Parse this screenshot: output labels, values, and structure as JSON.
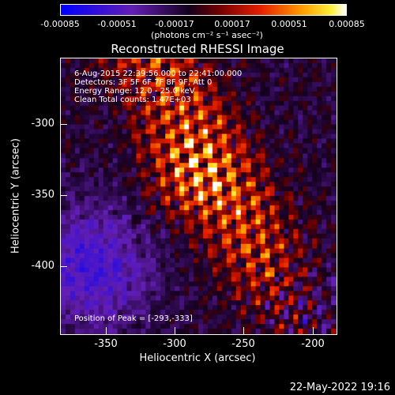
{
  "colorbar": {
    "ticks": [
      "-0.00085",
      "-0.00051",
      "-0.00017",
      "0.00017",
      "0.00051",
      "0.00085"
    ],
    "unit_label": "(photons cm⁻² s⁻¹ asec⁻²)"
  },
  "title": "Reconstructed RHESSI Image",
  "overlay": {
    "line1": "6-Aug-2015 22:39:56.000 to 22:41:00.000",
    "line2": "Detectors: 3F 5F 6F 7F 8F 9F, Att 0",
    "line3": "Energy Range: 12.0 - 25.0 keV",
    "line4": "Clean     Total counts: 1.47E+03",
    "peak": "Position of Peak = [-293,-333]"
  },
  "axes": {
    "x_label": "Heliocentric X (arcsec)",
    "y_label": "Heliocentric Y (arcsec)",
    "x_ticks": [
      "-350",
      "-300",
      "-250",
      "-200"
    ],
    "y_ticks": [
      "-300",
      "-350",
      "-400"
    ]
  },
  "timestamp": "22-May-2022 19:16"
}
